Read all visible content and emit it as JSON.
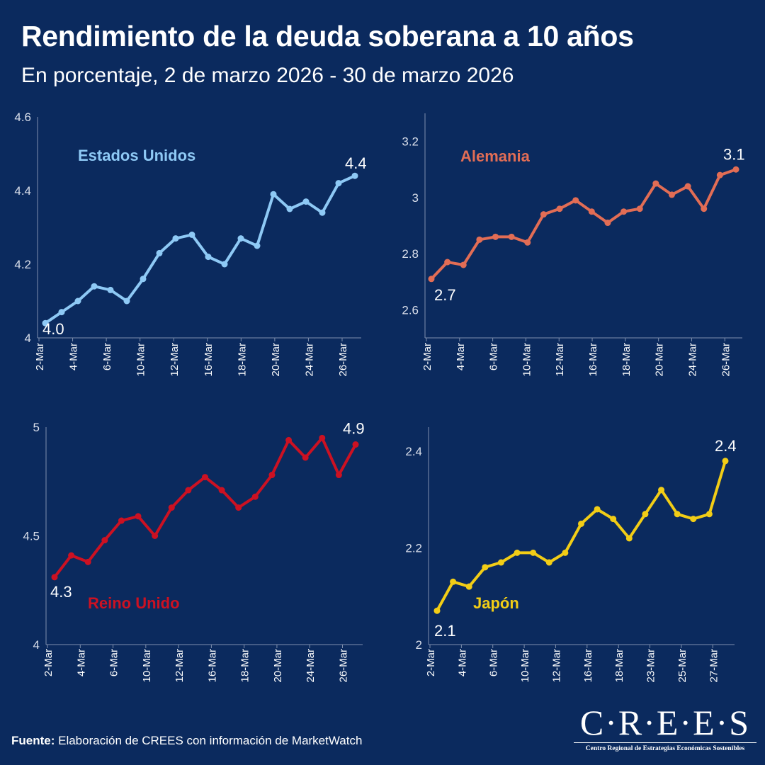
{
  "title": "Rendimiento de la deuda soberana a 10 años",
  "subtitle": "En porcentaje, 2 de marzo 2026 - 30 de marzo 2026",
  "footer": {
    "label": "Fuente:",
    "text": " Elaboración de CREES con información de MarketWatch"
  },
  "logo": {
    "text": "C·R·E·E·S",
    "tagline": "Centro Regional de Estrategias Económicas Sostenibles"
  },
  "colors": {
    "background": "#0b2a5e",
    "axis": "#7f8fad",
    "text": "#ffffff"
  },
  "chart_data": [
    {
      "type": "line",
      "name": "Estados Unidos",
      "color": "#8ec9f5",
      "ylim": [
        4,
        4.6
      ],
      "yticks": [
        4,
        4.2,
        4.4,
        4.6
      ],
      "ytick_labels": [
        "4",
        "4.2",
        "4.4",
        "4.6"
      ],
      "xtick_labels": [
        "2-Mar",
        "4-Mar",
        "6-Mar",
        "10-Mar",
        "12-Mar",
        "16-Mar",
        "18-Mar",
        "20-Mar",
        "24-Mar",
        "26-Mar"
      ],
      "values": [
        4.04,
        4.07,
        4.1,
        4.14,
        4.13,
        4.1,
        4.16,
        4.23,
        4.27,
        4.28,
        4.22,
        4.2,
        4.27,
        4.25,
        4.39,
        4.35,
        4.37,
        4.34,
        4.42,
        4.44
      ],
      "first_label": "4.0",
      "last_label": "4.4"
    },
    {
      "type": "line",
      "name": "Alemania",
      "color": "#e26d55",
      "ylim": [
        2.5,
        3.3
      ],
      "yticks": [
        2.6,
        2.8,
        3.0,
        3.2
      ],
      "ytick_labels": [
        "2.6",
        "2.8",
        "3",
        "3.2"
      ],
      "xtick_labels": [
        "2-Mar",
        "4-Mar",
        "6-Mar",
        "10-Mar",
        "12-Mar",
        "16-Mar",
        "18-Mar",
        "20-Mar",
        "24-Mar",
        "26-Mar"
      ],
      "values": [
        2.71,
        2.77,
        2.76,
        2.85,
        2.86,
        2.86,
        2.84,
        2.94,
        2.96,
        2.99,
        2.95,
        2.91,
        2.95,
        2.96,
        3.05,
        3.01,
        3.04,
        2.96,
        3.08,
        3.1
      ],
      "first_label": "2.7",
      "last_label": "3.1"
    },
    {
      "type": "line",
      "name": "Reino Unido",
      "color": "#cc1122",
      "ylim": [
        4,
        5
      ],
      "yticks": [
        4,
        4.5,
        5
      ],
      "ytick_labels": [
        "4",
        "4.5",
        "5"
      ],
      "xtick_labels": [
        "2-Mar",
        "4-Mar",
        "6-Mar",
        "10-Mar",
        "12-Mar",
        "16-Mar",
        "18-Mar",
        "20-Mar",
        "24-Mar",
        "26-Mar"
      ],
      "values": [
        4.31,
        4.41,
        4.38,
        4.48,
        4.57,
        4.59,
        4.5,
        4.63,
        4.71,
        4.77,
        4.71,
        4.63,
        4.68,
        4.78,
        4.94,
        4.86,
        4.95,
        4.78,
        4.92
      ],
      "first_label": "4.3",
      "last_label": "4.9"
    },
    {
      "type": "line",
      "name": "Japón",
      "color": "#f2cd16",
      "ylim": [
        2,
        2.45
      ],
      "yticks": [
        2,
        2.2,
        2.4
      ],
      "ytick_labels": [
        "2",
        "2.2",
        "2.4"
      ],
      "xtick_labels": [
        "2-Mar",
        "4-Mar",
        "6-Mar",
        "10-Mar",
        "12-Mar",
        "16-Mar",
        "18-Mar",
        "23-Mar",
        "25-Mar",
        "27-Mar"
      ],
      "values": [
        2.07,
        2.13,
        2.12,
        2.16,
        2.17,
        2.19,
        2.19,
        2.17,
        2.19,
        2.25,
        2.28,
        2.26,
        2.22,
        2.27,
        2.32,
        2.27,
        2.26,
        2.27,
        2.38
      ],
      "first_label": "2.1",
      "last_label": "2.4"
    }
  ]
}
